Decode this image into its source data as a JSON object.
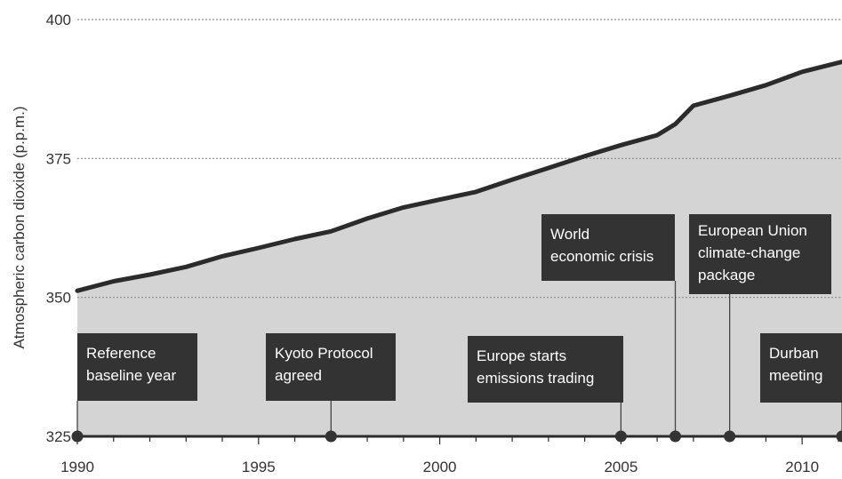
{
  "chart_data": {
    "type": "area",
    "title": "",
    "xlabel": "",
    "ylabel": "Atmospheric carbon dioxide (p.p.m.)",
    "xlim": [
      1990,
      2011.1
    ],
    "ylim": [
      325,
      400
    ],
    "x_ticks": [
      "1990",
      "1995",
      "2000",
      "2005",
      "2010"
    ],
    "y_ticks": [
      "325",
      "350",
      "375",
      "400"
    ],
    "grid": true,
    "series": [
      {
        "x": [
          1990,
          1991,
          1992,
          1993,
          1994,
          1995,
          1996,
          1997,
          1998,
          1999,
          2000,
          2001,
          2002,
          2003,
          2004,
          2005,
          2006,
          2006.5,
          2007,
          2008,
          2009,
          2010,
          2011.1
        ],
        "values": [
          351.2,
          352.9,
          354.1,
          355.5,
          357.4,
          358.9,
          360.5,
          361.9,
          364.2,
          366.2,
          367.6,
          369.0,
          371.2,
          373.3,
          375.4,
          377.4,
          379.2,
          381.2,
          384.5,
          386.3,
          388.2,
          390.6,
          392.4
        ]
      }
    ],
    "annotations": [
      {
        "year": 1990,
        "lines": [
          "Reference",
          "baseline year"
        ]
      },
      {
        "year": 1997,
        "lines": [
          "Kyoto Protocol",
          "agreed"
        ]
      },
      {
        "year": 2005,
        "lines": [
          "Europe starts",
          "emissions trading"
        ]
      },
      {
        "year": 2006.5,
        "lines": [
          "World",
          "economic crisis"
        ]
      },
      {
        "year": 2008,
        "lines": [
          "European Union",
          "climate-change",
          "package"
        ]
      },
      {
        "year": 2011.1,
        "lines": [
          "Durban",
          "meeting"
        ]
      }
    ],
    "colors": {
      "area": "#d4d4d4",
      "line": "#2b2b2b",
      "label_box": "#333333",
      "label_text": "#ffffff",
      "grid": "#8a8a8a"
    }
  }
}
